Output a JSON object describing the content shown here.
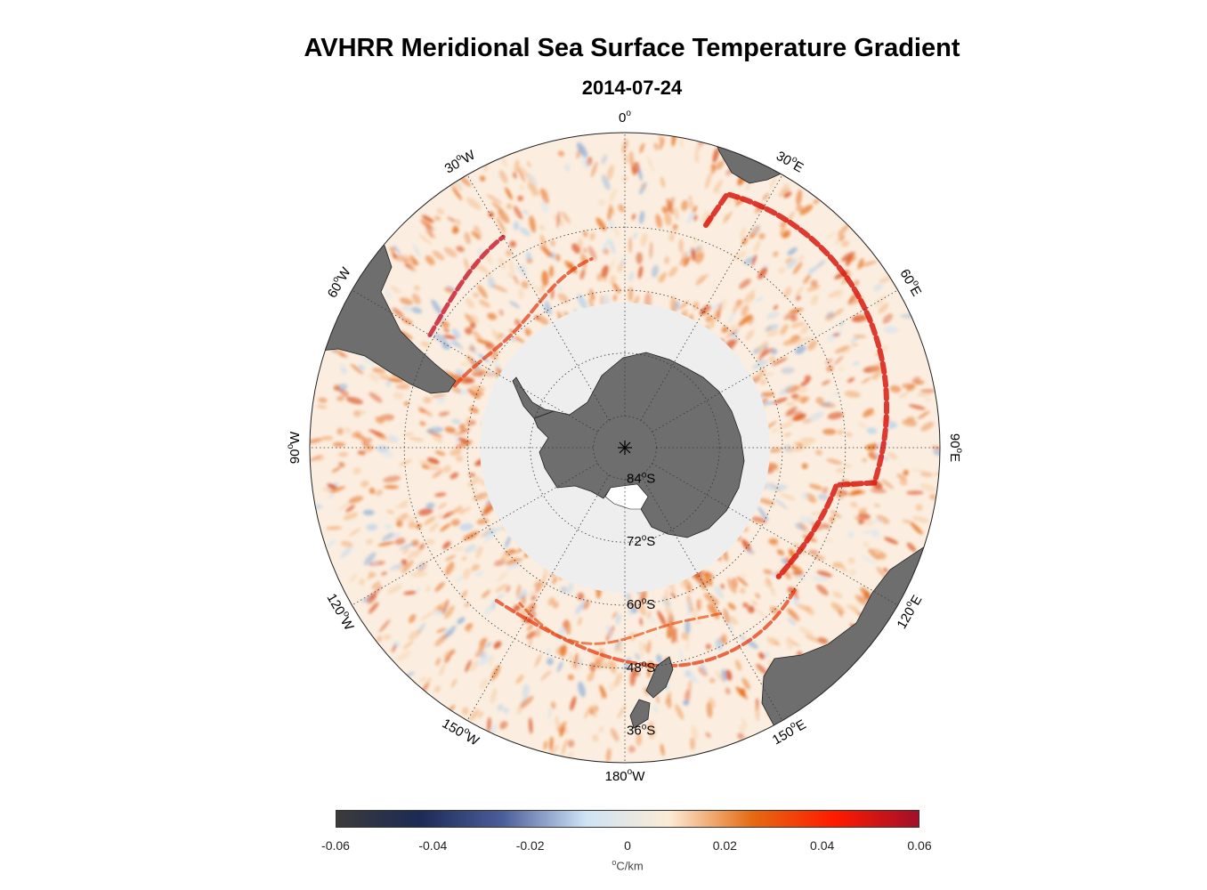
{
  "title": "AVHRR Meridional Sea Surface Temperature Gradient",
  "subtitle": "2014-07-24",
  "map": {
    "projection": "south-polar-stereographic",
    "pole_label_center": "0",
    "longitude_labels": [
      {
        "text": "0",
        "sup": "o",
        "suffix": "",
        "deg": 0
      },
      {
        "text": "30",
        "sup": "o",
        "suffix": "E",
        "deg": 30
      },
      {
        "text": "60",
        "sup": "o",
        "suffix": "E",
        "deg": 60
      },
      {
        "text": "90",
        "sup": "o",
        "suffix": "E",
        "deg": 90
      },
      {
        "text": "120",
        "sup": "o",
        "suffix": "E",
        "deg": 120
      },
      {
        "text": "150",
        "sup": "o",
        "suffix": "E",
        "deg": 150
      },
      {
        "text": "180",
        "sup": "o",
        "suffix": "W",
        "deg": 180
      },
      {
        "text": "150",
        "sup": "o",
        "suffix": "W",
        "deg": 210
      },
      {
        "text": "120",
        "sup": "o",
        "suffix": "W",
        "deg": 240
      },
      {
        "text": "90",
        "sup": "o",
        "suffix": "W",
        "deg": 270
      },
      {
        "text": "60",
        "sup": "o",
        "suffix": "W",
        "deg": 300
      },
      {
        "text": "30",
        "sup": "o",
        "suffix": "W",
        "deg": 330
      }
    ],
    "latitude_labels": [
      {
        "text": "84",
        "sup": "o",
        "suffix": "S",
        "lat": 84
      },
      {
        "text": "72",
        "sup": "o",
        "suffix": "S",
        "lat": 72
      },
      {
        "text": "60",
        "sup": "o",
        "suffix": "S",
        "lat": 60
      },
      {
        "text": "48",
        "sup": "o",
        "suffix": "S",
        "lat": 48
      },
      {
        "text": "36",
        "sup": "o",
        "suffix": "S",
        "lat": 36
      }
    ],
    "colors": {
      "land": "#6e6e6e",
      "sea_ice": "#eeeeee",
      "ocean_base": "#fbeee0",
      "grid": "#333333"
    }
  },
  "colorbar": {
    "min": -0.06,
    "max": 0.06,
    "tick_labels": [
      "-0.06",
      "-0.04",
      "-0.02",
      "0",
      "0.02",
      "0.04",
      "0.06"
    ],
    "unit_sup": "o",
    "unit": "C/km",
    "colors": [
      "#3b3b3b",
      "#1c2a55",
      "#4a5e9c",
      "#cfe3f5",
      "#fcebd5",
      "#e56a12",
      "#ff1a00",
      "#a0102a"
    ]
  }
}
